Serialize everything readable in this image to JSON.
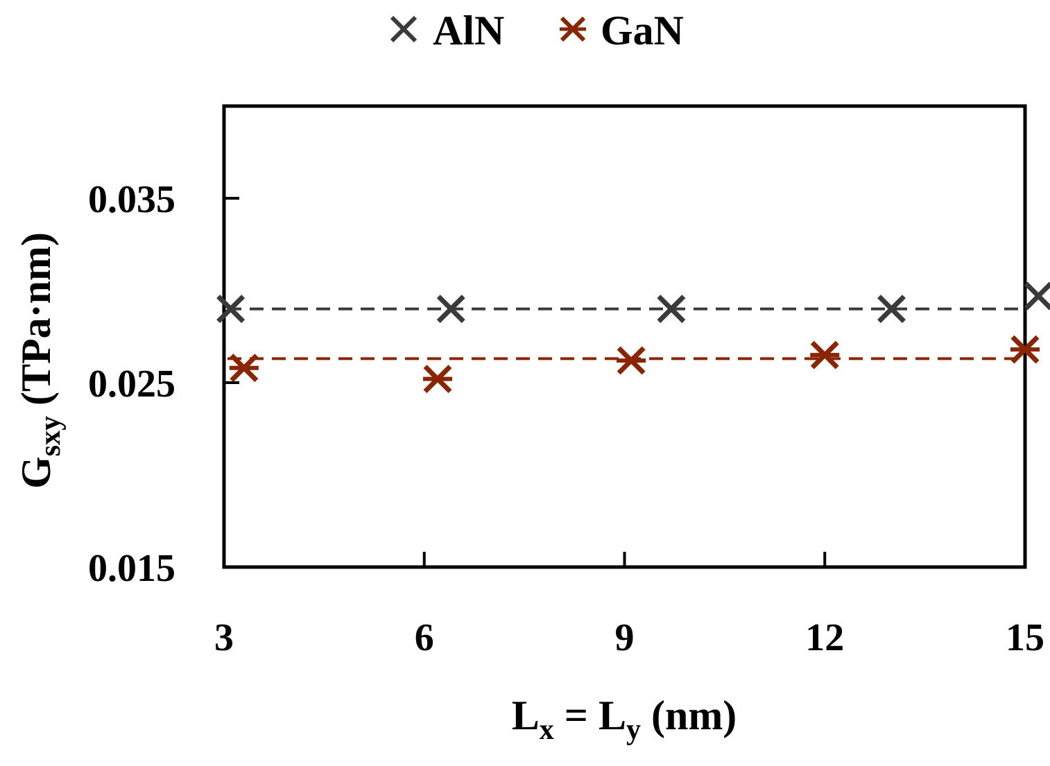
{
  "chart_data": {
    "type": "scatter",
    "xlabel": {
      "main": "L",
      "x_sub": "x",
      "equals": " = ",
      "y_main": "L",
      "y_sub": "y",
      "unit": " (nm)"
    },
    "ylabel": {
      "main": "G",
      "sub": "sxy",
      "unit": " (TPa·nm)"
    },
    "xlim": [
      3,
      15
    ],
    "ylim": [
      0.015,
      0.04
    ],
    "xticks": [
      3,
      6,
      9,
      12,
      15
    ],
    "xtick_labels": [
      "3",
      "6",
      "9",
      "12",
      "15"
    ],
    "yticks": [
      0.015,
      0.025,
      0.035
    ],
    "ytick_labels": [
      "0.015",
      "0.025",
      "0.035"
    ],
    "grid": false,
    "legend": {
      "placement": "top-center",
      "entries": [
        "AlN",
        "GaN"
      ]
    },
    "series": [
      {
        "name": "AlN",
        "marker": "x",
        "color": "#3a3a3a",
        "x": [
          3.1,
          6.4,
          9.7,
          13.0,
          15.2
        ],
        "y": [
          0.029,
          0.029,
          0.029,
          0.029,
          0.0297
        ],
        "fit_y": 0.029
      },
      {
        "name": "GaN",
        "marker": "asterisk",
        "color": "#8b2500",
        "x": [
          3.3,
          6.2,
          9.1,
          12.0,
          15.0
        ],
        "y": [
          0.0258,
          0.0252,
          0.0262,
          0.0265,
          0.0268
        ],
        "fit_y": 0.0263
      }
    ]
  }
}
